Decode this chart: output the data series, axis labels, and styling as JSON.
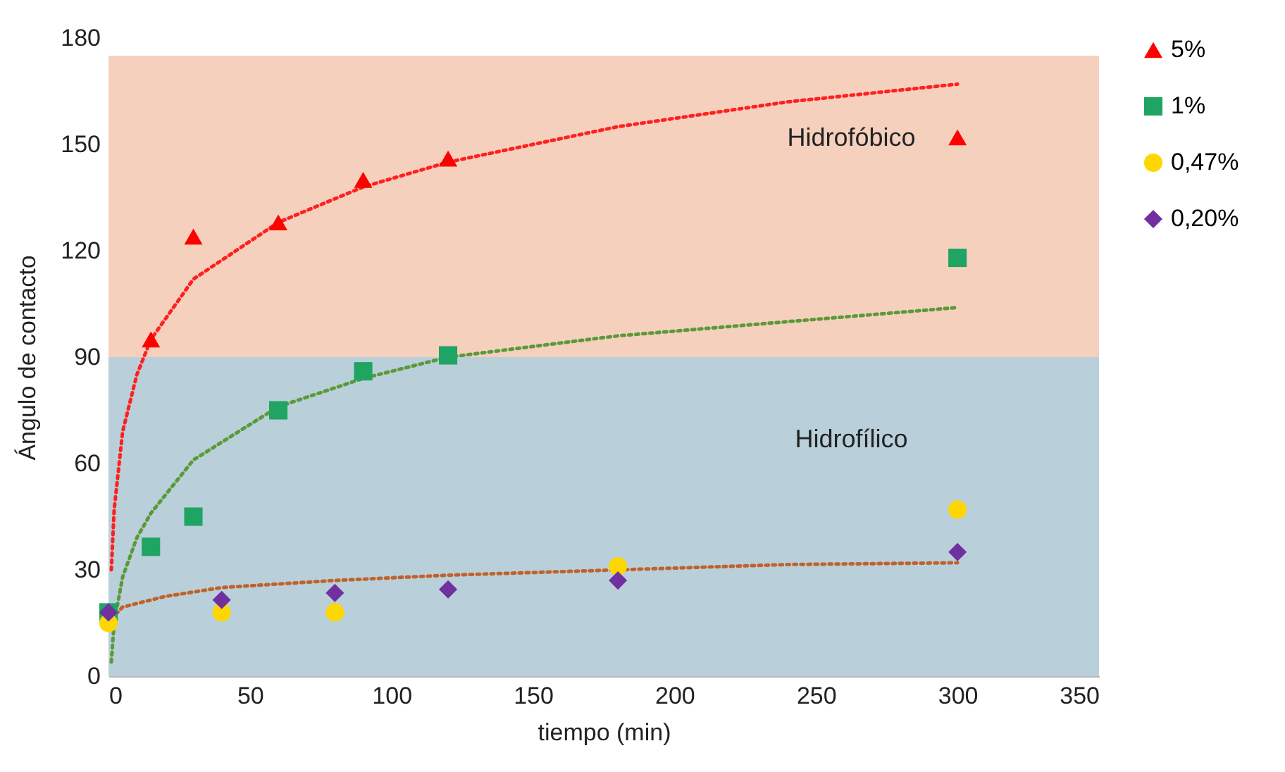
{
  "chart_data": {
    "type": "scatter",
    "xlabel": "tiempo (min)",
    "ylabel": "Ángulo de contacto",
    "xlim": [
      0,
      350
    ],
    "xticks": [
      0,
      50,
      100,
      150,
      200,
      250,
      300,
      350
    ],
    "ylim": [
      0,
      180
    ],
    "yticks": [
      0,
      30,
      60,
      90,
      120,
      150,
      180
    ],
    "grid": false,
    "legend": "right",
    "series": [
      {
        "name": "5%",
        "color": "#ff0000",
        "marker": "triangle",
        "x": [
          15,
          30,
          60,
          90,
          120,
          300
        ],
        "values": [
          95,
          124,
          128,
          140,
          146,
          152
        ]
      },
      {
        "name": "1%",
        "color": "#1fa463",
        "marker": "square",
        "x": [
          0,
          15,
          30,
          60,
          90,
          120,
          300
        ],
        "values": [
          18,
          36.5,
          45,
          75,
          86,
          90.5,
          118
        ]
      },
      {
        "name": "0,47%",
        "color": "#ffd700",
        "marker": "circle",
        "x": [
          0,
          40,
          80,
          180,
          300
        ],
        "values": [
          15,
          18,
          18,
          31,
          47
        ]
      },
      {
        "name": "0,20%",
        "color": "#7030a0",
        "marker": "diamond",
        "x": [
          0,
          40,
          80,
          120,
          180,
          300
        ],
        "values": [
          18,
          21.5,
          23.5,
          24.5,
          27,
          35
        ]
      },
      {
        "type": "line",
        "color": "#ff2020",
        "line_style": "dotted",
        "marker": "none",
        "x": [
          1,
          2,
          5,
          10,
          15,
          30,
          60,
          90,
          120,
          180,
          240,
          300
        ],
        "values": [
          30,
          47,
          69,
          85,
          95,
          112,
          128,
          138,
          145,
          155,
          162,
          167
        ]
      },
      {
        "type": "line",
        "color": "#5a9a3a",
        "line_style": "dotted",
        "marker": "none",
        "x": [
          1,
          2,
          5,
          10,
          15,
          30,
          60,
          90,
          120,
          180,
          240,
          300
        ],
        "values": [
          4,
          15,
          28,
          39,
          46,
          61,
          76,
          84,
          90,
          96,
          100,
          104
        ]
      },
      {
        "type": "line",
        "color": "#c0622b",
        "line_style": "dotted",
        "marker": "none",
        "x": [
          0.5,
          1,
          2,
          5,
          10,
          20,
          40,
          80,
          120,
          180,
          240,
          300
        ],
        "values": [
          14,
          15.5,
          17,
          19.5,
          20.5,
          22.5,
          25,
          27,
          28.5,
          30,
          31.5,
          32
        ]
      }
    ],
    "bands": [
      {
        "axis": "y",
        "from": 90,
        "to": 175,
        "label": "Hidrofóbico",
        "color": "#f5d0bd"
      },
      {
        "axis": "y",
        "from": 0,
        "to": 90,
        "label": "Hidrofílico",
        "color": "#b9cfd9"
      }
    ]
  }
}
